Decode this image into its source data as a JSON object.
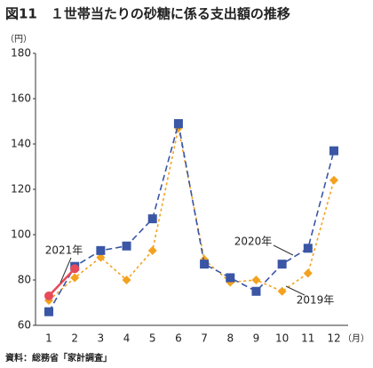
{
  "chart_data": {
    "type": "line",
    "title": "図11　１世帯当たりの砂糖に係る支出額の推移",
    "y_unit": "（円）",
    "x_unit": "（月）",
    "source": "資料：総務省「家計調査」",
    "categories": [
      "1",
      "2",
      "3",
      "4",
      "5",
      "6",
      "7",
      "8",
      "9",
      "10",
      "11",
      "12"
    ],
    "ylim": [
      60,
      180
    ],
    "yticks": [
      60,
      80,
      100,
      120,
      140,
      160,
      180
    ],
    "grid": false,
    "series": [
      {
        "name": "2019年",
        "color": "#f3a21f",
        "dash": "dotted",
        "marker": "diamond",
        "values": [
          71,
          81,
          90,
          80,
          93,
          147,
          89,
          79,
          80,
          75,
          83,
          124
        ]
      },
      {
        "name": "2020年",
        "color": "#3a56a5",
        "dash": "dashed",
        "marker": "square",
        "values": [
          66,
          86,
          93,
          95,
          107,
          149,
          87,
          81,
          75,
          87,
          94,
          137
        ]
      },
      {
        "name": "2021年",
        "color": "#e84a5a",
        "dash": "solid",
        "marker": "circle",
        "values": [
          73,
          85,
          null,
          null,
          null,
          null,
          null,
          null,
          null,
          null,
          null,
          null
        ]
      }
    ]
  }
}
